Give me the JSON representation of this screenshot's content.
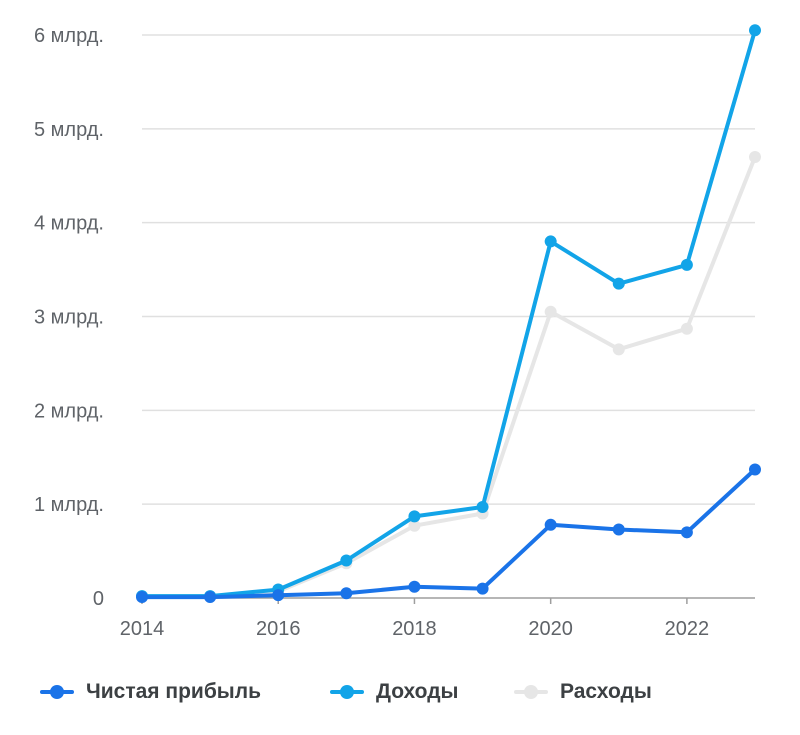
{
  "chart_data": {
    "type": "line",
    "x": [
      2014,
      2015,
      2016,
      2017,
      2018,
      2019,
      2020,
      2021,
      2022,
      2023
    ],
    "xticks": [
      "2014",
      "2016",
      "2018",
      "2020",
      "2022"
    ],
    "yticks": [
      "0",
      "1 млрд.",
      "2 млрд.",
      "3 млрд.",
      "4 млрд.",
      "5 млрд.",
      "6 млрд."
    ],
    "ylim": [
      0,
      6
    ],
    "grid": true,
    "legend_position": "bottom",
    "series": [
      {
        "name": "Чистая прибыль",
        "color": "#1a73e8",
        "values": [
          0.01,
          0.01,
          0.03,
          0.05,
          0.12,
          0.1,
          0.78,
          0.73,
          0.7,
          1.37
        ]
      },
      {
        "name": "Доходы",
        "color": "#12a4e8",
        "values": [
          0.02,
          0.02,
          0.09,
          0.4,
          0.87,
          0.97,
          3.8,
          3.35,
          3.55,
          6.05
        ]
      },
      {
        "name": "Расходы",
        "color": "#e6e6e6",
        "values": [
          0.02,
          0.02,
          0.07,
          0.37,
          0.77,
          0.9,
          3.05,
          2.65,
          2.87,
          4.7
        ]
      }
    ]
  }
}
